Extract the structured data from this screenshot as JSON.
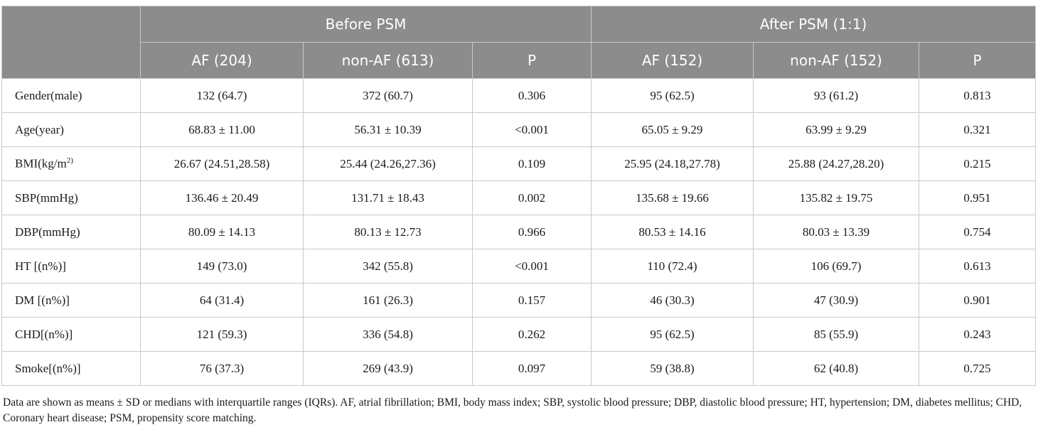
{
  "table": {
    "group_headers": [
      "Before PSM",
      "After PSM (1:1)"
    ],
    "col_headers": [
      "AF (204)",
      "non-AF (613)",
      "P",
      "AF (152)",
      "non-AF (152)",
      "P"
    ],
    "rows": [
      {
        "label": "Gender(male)",
        "sup": "",
        "after": "",
        "cells": [
          "132 (64.7)",
          "372 (60.7)",
          "0.306",
          "95 (62.5)",
          "93 (61.2)",
          "0.813"
        ]
      },
      {
        "label": "Age(year)",
        "sup": "",
        "after": "",
        "cells": [
          "68.83 ± 11.00",
          "56.31 ± 10.39",
          "<0.001",
          "65.05 ± 9.29",
          "63.99 ± 9.29",
          "0.321"
        ]
      },
      {
        "label": "BMI(kg/m",
        "sup": "2)",
        "after": "",
        "cells": [
          "26.67 (24.51,28.58)",
          "25.44 (24.26,27.36)",
          "0.109",
          "25.95 (24.18,27.78)",
          "25.88 (24.27,28.20)",
          "0.215"
        ]
      },
      {
        "label": "SBP(mmHg)",
        "sup": "",
        "after": "",
        "cells": [
          "136.46 ± 20.49",
          "131.71 ± 18.43",
          "0.002",
          "135.68 ± 19.66",
          "135.82 ± 19.75",
          "0.951"
        ]
      },
      {
        "label": "DBP(mmHg)",
        "sup": "",
        "after": "",
        "cells": [
          "80.09 ± 14.13",
          "80.13 ± 12.73",
          "0.966",
          "80.53 ± 14.16",
          "80.03 ± 13.39",
          "0.754"
        ]
      },
      {
        "label": "HT [(n%)]",
        "sup": "",
        "after": "",
        "cells": [
          "149 (73.0)",
          "342 (55.8)",
          "<0.001",
          "110 (72.4)",
          "106 (69.7)",
          "0.613"
        ]
      },
      {
        "label": "DM [(n%)]",
        "sup": "",
        "after": "",
        "cells": [
          "64 (31.4)",
          "161 (26.3)",
          "0.157",
          "46 (30.3)",
          "47 (30.9)",
          "0.901"
        ]
      },
      {
        "label": "CHD[(n%)]",
        "sup": "",
        "after": "",
        "cells": [
          "121 (59.3)",
          "336 (54.8)",
          "0.262",
          "95 (62.5)",
          "85 (55.9)",
          "0.243"
        ]
      },
      {
        "label": "Smoke[(n%)]",
        "sup": "",
        "after": "",
        "cells": [
          "76 (37.3)",
          "269 (43.9)",
          "0.097",
          "59 (38.8)",
          "62 (40.8)",
          "0.725"
        ]
      }
    ]
  },
  "footnote": "Data are shown as means ± SD or medians with interquartile ranges (IQRs). AF, atrial fibrillation; BMI, body mass index; SBP, systolic blood pressure; DBP, diastolic blood pressure; HT, hypertension; DM, diabetes mellitus; CHD, Coronary heart disease; PSM, propensity score matching."
}
